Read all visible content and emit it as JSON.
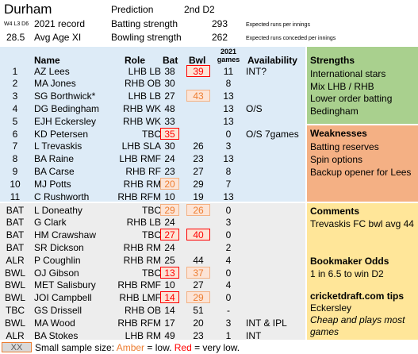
{
  "header": {
    "team": "Durham",
    "prediction_label": "Prediction",
    "prediction_value": "2nd D2",
    "record_small": "W4 L3 D6",
    "record_label": "2021 record",
    "batting_label": "Batting strength",
    "batting_value": "293",
    "batting_note": "Expected runs per innings",
    "avg_age_value": "28.5",
    "avg_age_label": "Avg Age XI",
    "bowling_label": "Bowling strength",
    "bowling_value": "262",
    "bowling_note": "Expected runs conceded per innings"
  },
  "columns": {
    "name": "Name",
    "role": "Role",
    "bat": "Bat",
    "bwl": "Bwl",
    "games_year": "2021",
    "games": "games",
    "availability": "Availability"
  },
  "first_xi": [
    {
      "num": "1",
      "name": "AZ Lees",
      "role": "LHB LB",
      "bat": "38",
      "bwl": "39",
      "games": "11",
      "avail": "INT?",
      "bwl_flag": "red"
    },
    {
      "num": "2",
      "name": "MA Jones",
      "role": "RHB OB",
      "bat": "30",
      "bwl": "",
      "games": "8",
      "avail": ""
    },
    {
      "num": "3",
      "name": "SG Borthwick*",
      "role": "LHB LB",
      "bat": "27",
      "bwl": "43",
      "games": "13",
      "avail": "",
      "bwl_flag": "amber"
    },
    {
      "num": "4",
      "name": "DG Bedingham",
      "role": "RHB WK",
      "bat": "48",
      "bwl": "",
      "games": "13",
      "avail": "O/S"
    },
    {
      "num": "5",
      "name": "EJH Eckersley",
      "role": "RHB WK",
      "bat": "33",
      "bwl": "",
      "games": "13",
      "avail": ""
    },
    {
      "num": "6",
      "name": "KD Petersen",
      "role": "TBC",
      "bat": "35",
      "bwl": "",
      "games": "0",
      "avail": "O/S 7games",
      "bat_flag": "red"
    },
    {
      "num": "7",
      "name": "L Trevaskis",
      "role": "LHB SLA",
      "bat": "30",
      "bwl": "26",
      "games": "3",
      "avail": ""
    },
    {
      "num": "8",
      "name": "BA Raine",
      "role": "LHB RMF",
      "bat": "24",
      "bwl": "23",
      "games": "13",
      "avail": ""
    },
    {
      "num": "9",
      "name": "BA Carse",
      "role": "RHB RF",
      "bat": "23",
      "bwl": "27",
      "games": "8",
      "avail": ""
    },
    {
      "num": "10",
      "name": "MJ Potts",
      "role": "RHB RM",
      "bat": "20",
      "bwl": "29",
      "games": "7",
      "avail": "",
      "bat_flag": "amber"
    },
    {
      "num": "11",
      "name": "C Rushworth",
      "role": "RHB RFM",
      "bat": "10",
      "bwl": "19",
      "games": "13",
      "avail": ""
    }
  ],
  "reserves": [
    {
      "num": "BAT",
      "name": "L Doneathy",
      "role": "TBC",
      "bat": "29",
      "bwl": "26",
      "games": "0",
      "avail": "",
      "bat_flag": "amber",
      "bwl_flag": "amber"
    },
    {
      "num": "BAT",
      "name": "G Clark",
      "role": "RHB LB",
      "bat": "24",
      "bwl": "",
      "games": "3",
      "avail": ""
    },
    {
      "num": "BAT",
      "name": "HM Crawshaw",
      "role": "TBC",
      "bat": "27",
      "bwl": "40",
      "games": "0",
      "avail": "",
      "bat_flag": "red",
      "bwl_flag": "red"
    },
    {
      "num": "BAT",
      "name": "SR Dickson",
      "role": "RHB RM",
      "bat": "24",
      "bwl": "",
      "games": "2",
      "avail": ""
    },
    {
      "num": "ALR",
      "name": "P Coughlin",
      "role": "RHB RM",
      "bat": "25",
      "bwl": "44",
      "games": "4",
      "avail": ""
    },
    {
      "num": "BWL",
      "name": "OJ Gibson",
      "role": "TBC",
      "bat": "13",
      "bwl": "37",
      "games": "0",
      "avail": "",
      "bat_flag": "red",
      "bwl_flag": "amber"
    },
    {
      "num": "BWL",
      "name": "MET Salisbury",
      "role": "RHB RMF",
      "bat": "10",
      "bwl": "27",
      "games": "4",
      "avail": ""
    },
    {
      "num": "BWL",
      "name": "JOI Campbell",
      "role": "RHB LMF",
      "bat": "14",
      "bwl": "29",
      "games": "0",
      "avail": "",
      "bat_flag": "red",
      "bwl_flag": "amber"
    },
    {
      "num": "TBC",
      "name": "GS Drissell",
      "role": "RHB OB",
      "bat": "14",
      "bwl": "51",
      "games": "-",
      "avail": ""
    },
    {
      "num": "BWL",
      "name": "MA Wood",
      "role": "RHB RFM",
      "bat": "17",
      "bwl": "20",
      "games": "3",
      "avail": "INT & IPL"
    },
    {
      "num": "ALR",
      "name": "BA Stokes",
      "role": "LHB RM",
      "bat": "49",
      "bwl": "23",
      "games": "1",
      "avail": "INT"
    }
  ],
  "strengths": {
    "title": "Strengths",
    "items": [
      "International stars",
      "Mix LHB / RHB",
      "Lower order batting",
      "Bedingham"
    ]
  },
  "weaknesses": {
    "title": "Weaknesses",
    "items": [
      "Batting reserves",
      "Spin options",
      "Backup opener for Lees"
    ]
  },
  "comments": {
    "title": "Comments",
    "text": "Trevaskis FC bwl avg 44"
  },
  "odds": {
    "title": "Bookmaker Odds",
    "text": "1 in 6.5 to win D2"
  },
  "tips": {
    "title": "cricketdraft.com tips",
    "name": "Eckersley",
    "note_line1": "Cheap and plays most",
    "note_line2": "games"
  },
  "legend": {
    "box": "XX",
    "text_pre": "Small sample size: ",
    "amber": "Amber",
    "mid": " = low. ",
    "red": "Red",
    "post": " = very low."
  },
  "colors": {
    "blue_panel": "#ddebf7",
    "grey_panel": "#ededed",
    "strengths": "#a9d08e",
    "weaknesses": "#f4b084",
    "notes": "#ffe699",
    "amber": "#ed7d31",
    "red": "#ff0000"
  }
}
